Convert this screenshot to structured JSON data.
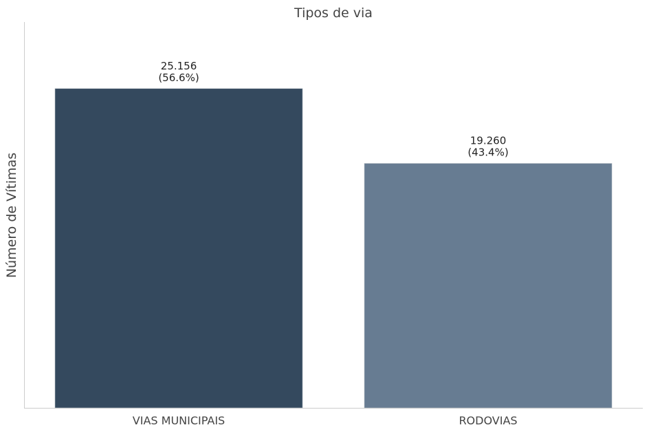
{
  "chart_data": {
    "type": "bar",
    "title": "Tipos de via",
    "xlabel": "",
    "ylabel": "Número de Vítimas",
    "categories": [
      "VIAS MUNICIPAIS",
      "RODOVIAS"
    ],
    "values": [
      25156,
      19260
    ],
    "value_labels": [
      "25.156",
      "19.260"
    ],
    "percent_labels": [
      "(56.6%)",
      "(43.4%)"
    ],
    "colors": [
      "#34495e",
      "#677c92"
    ],
    "ylim": [
      0,
      30400
    ],
    "grid": false,
    "legend": "none"
  }
}
